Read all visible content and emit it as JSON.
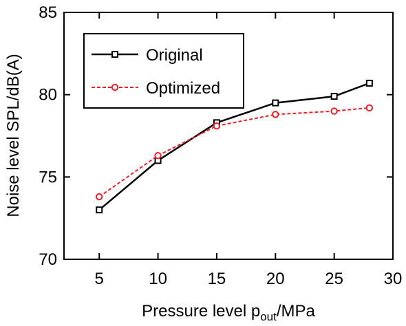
{
  "chart_data": {
    "type": "line",
    "xlabel": {
      "pre": "Pressure level p",
      "sub": "out",
      "post": "/MPa"
    },
    "ylabel": "Noise level SPL/dB(A)",
    "xlim": [
      2,
      30
    ],
    "ylim": [
      70,
      85
    ],
    "xticks": [
      5,
      10,
      15,
      20,
      25,
      30
    ],
    "yticks": [
      70,
      75,
      80,
      85
    ],
    "grid": false,
    "legend_position": "top-left",
    "x": [
      5,
      10,
      15,
      20,
      25,
      28
    ],
    "series": [
      {
        "name": "Original",
        "color": "#000000",
        "marker": "square",
        "dash": "solid",
        "values": [
          73.0,
          76.0,
          78.3,
          79.5,
          79.9,
          80.7
        ]
      },
      {
        "name": "Optimized",
        "color": "#e8202a",
        "marker": "circle",
        "dash": "dashed",
        "values": [
          73.8,
          76.3,
          78.1,
          78.8,
          79.0,
          79.2
        ]
      }
    ]
  }
}
